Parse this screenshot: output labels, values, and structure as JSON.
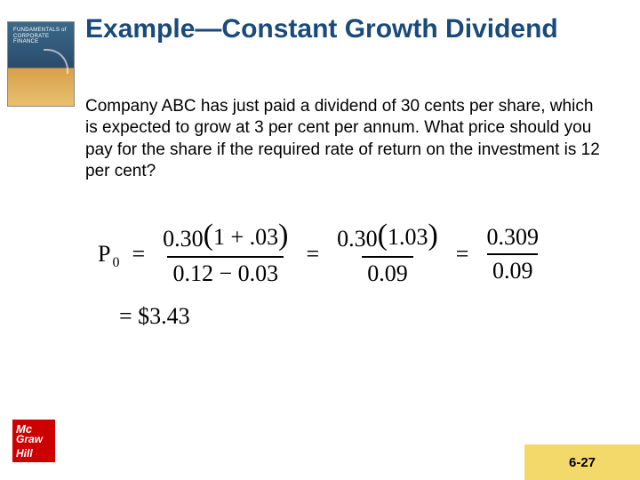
{
  "book": {
    "line1": "FUNDAMENTALS of",
    "line2": "CORPORATE",
    "line3": "FINANCE"
  },
  "title": "Example—Constant Growth Dividend",
  "body": "Company ABC has just paid a dividend of 30 cents per share, which is expected to grow at 3 per cent per annum.  What price should you pay for the share if the required rate of return on the investment is 12 per cent?",
  "formula": {
    "P": "P",
    "zero": "0",
    "eq": "=",
    "frac1_num_a": "0.30",
    "frac1_num_b": "1 + .03",
    "frac1_den": "0.12 − 0.03",
    "frac2_num_a": "0.30",
    "frac2_num_b": "1.03",
    "frac2_den": "0.09",
    "frac3_num": "0.309",
    "frac3_den": "0.09",
    "result": "= $3.43"
  },
  "logo": {
    "top": "Mc",
    "mid": "Graw",
    "bot": "Hill"
  },
  "page": "6-27"
}
